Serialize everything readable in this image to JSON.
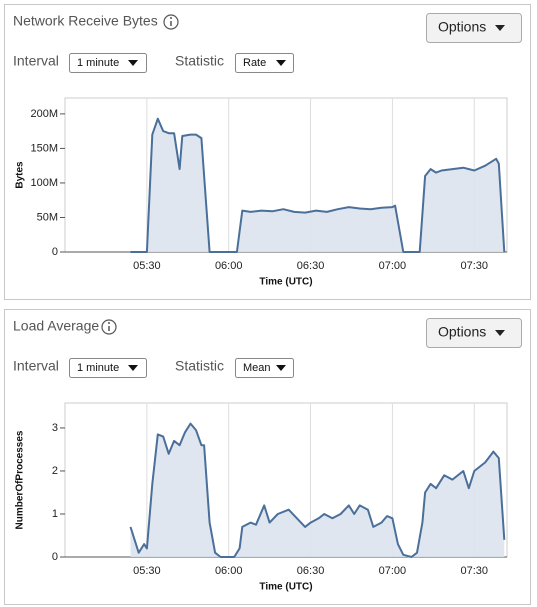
{
  "panels": [
    {
      "title": "Network Receive Bytes",
      "options": "Options",
      "interval_label": "Interval",
      "interval": "1 minute",
      "statistic_label": "Statistic",
      "statistic": "Rate"
    },
    {
      "title": "Load Average",
      "options": "Options",
      "interval_label": "Interval",
      "interval": "1 minute",
      "statistic_label": "Statistic",
      "statistic": "Mean"
    }
  ],
  "chart_data": [
    {
      "type": "area",
      "xlabel": "Time (UTC)",
      "ylabel": "Bytes",
      "color": "#4a6f9a",
      "fill": "#dbe3ee",
      "grid": true,
      "x": [
        "05:24",
        "05:30",
        "05:32",
        "05:34",
        "05:36",
        "05:38",
        "05:40",
        "05:42",
        "05:43",
        "05:46",
        "05:48",
        "05:50",
        "05:53",
        "06:03",
        "06:05",
        "06:08",
        "06:12",
        "06:16",
        "06:20",
        "06:24",
        "06:28",
        "06:32",
        "06:36",
        "06:40",
        "06:44",
        "06:48",
        "06:52",
        "06:56",
        "07:00",
        "07:01",
        "07:04",
        "07:10",
        "07:12",
        "07:14",
        "07:16",
        "07:18",
        "07:22",
        "07:26",
        "07:30",
        "07:34",
        "07:38",
        "07:39",
        "07:41"
      ],
      "values": [
        0,
        0,
        170000000,
        193000000,
        175000000,
        172000000,
        172000000,
        120000000,
        168000000,
        170000000,
        170000000,
        165000000,
        0,
        0,
        60000000,
        58000000,
        60000000,
        59000000,
        62000000,
        58000000,
        57000000,
        60000000,
        58000000,
        62000000,
        65000000,
        63000000,
        62000000,
        64000000,
        65000000,
        67000000,
        0,
        0,
        110000000,
        120000000,
        115000000,
        118000000,
        120000000,
        122000000,
        118000000,
        125000000,
        135000000,
        128000000,
        0
      ],
      "xlim": [
        "05:00",
        "07:42"
      ],
      "xticks": [
        "05:30",
        "06:00",
        "06:30",
        "07:00",
        "07:30"
      ],
      "ylim": [
        0,
        223000000
      ],
      "yticks": [
        0,
        {
          "value": 50000000,
          "label": "50M"
        },
        {
          "value": 100000000,
          "label": "100M"
        },
        {
          "value": 150000000,
          "label": "150M"
        },
        {
          "value": 200000000,
          "label": "200M"
        }
      ]
    },
    {
      "type": "area",
      "xlabel": "Time (UTC)",
      "ylabel": "NumberOfProcesses",
      "color": "#4a6f9a",
      "fill": "#dbe3ee",
      "grid": true,
      "x": [
        "05:24",
        "05:27",
        "05:29",
        "05:30",
        "05:32",
        "05:34",
        "05:36",
        "05:38",
        "05:40",
        "05:42",
        "05:44",
        "05:46",
        "05:48",
        "05:50",
        "05:51",
        "05:53",
        "05:55",
        "05:57",
        "06:02",
        "06:04",
        "06:05",
        "06:08",
        "06:10",
        "06:13",
        "06:15",
        "06:18",
        "06:22",
        "06:25",
        "06:28",
        "06:30",
        "06:33",
        "06:35",
        "06:38",
        "06:41",
        "06:44",
        "06:46",
        "06:48",
        "06:51",
        "06:53",
        "06:56",
        "06:58",
        "07:00",
        "07:02",
        "07:04",
        "07:07",
        "07:09",
        "07:11",
        "07:12",
        "07:14",
        "07:16",
        "07:19",
        "07:22",
        "07:26",
        "07:28",
        "07:30",
        "07:34",
        "07:37",
        "07:39",
        "07:41"
      ],
      "values": [
        0.7,
        0.1,
        0.3,
        0.2,
        1.7,
        2.85,
        2.8,
        2.4,
        2.7,
        2.6,
        2.9,
        3.1,
        2.95,
        2.6,
        2.6,
        0.8,
        0.1,
        0,
        0,
        0.2,
        0.7,
        0.8,
        0.75,
        1.2,
        0.8,
        1.0,
        1.1,
        0.9,
        0.7,
        0.8,
        0.9,
        1.0,
        0.9,
        1.0,
        1.2,
        1.0,
        1.2,
        1.1,
        0.7,
        0.8,
        0.95,
        0.9,
        0.3,
        0.05,
        0,
        0.1,
        0.8,
        1.5,
        1.7,
        1.6,
        1.9,
        1.8,
        2.0,
        1.6,
        2.0,
        2.2,
        2.45,
        2.3,
        0.4
      ],
      "xlim": [
        "05:00",
        "07:42"
      ],
      "xticks": [
        "05:30",
        "06:00",
        "06:30",
        "07:00",
        "07:30"
      ],
      "ylim": [
        0,
        3.58
      ],
      "yticks": [
        0,
        1,
        2,
        3
      ]
    }
  ]
}
